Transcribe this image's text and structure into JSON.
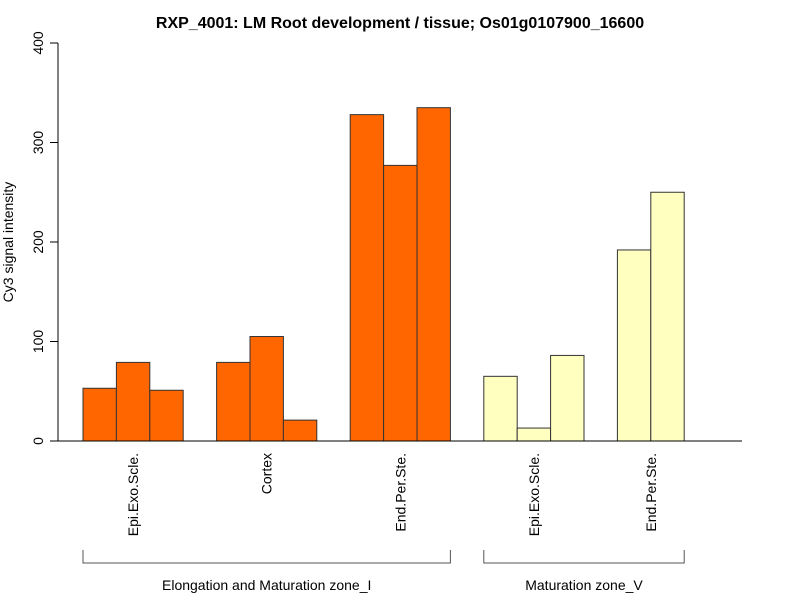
{
  "chart_data": {
    "type": "bar",
    "title": "RXP_4001: LM Root development / tissue; Os01g0107900_16600",
    "xlabel": "",
    "ylabel": "Cy3 signal intensity",
    "ylim": [
      0,
      400
    ],
    "yticks": [
      0,
      100,
      200,
      300,
      400
    ],
    "ytick_labels": [
      "0",
      "100",
      "200",
      "300",
      "400"
    ],
    "grid": false,
    "legend": "none",
    "groups": [
      {
        "name": "Elongation and Maturation zone_I",
        "color": "#FF6600",
        "categories": [
          {
            "label": "Epi.Exo.Scle.",
            "values": [
              53,
              79,
              51
            ]
          },
          {
            "label": "Cortex",
            "values": [
              79,
              105,
              21
            ]
          },
          {
            "label": "End.Per.Ste.",
            "values": [
              328,
              277,
              335
            ]
          }
        ]
      },
      {
        "name": "Maturation zone_V",
        "color": "#FFFFC0",
        "categories": [
          {
            "label": "Epi.Exo.Scle.",
            "values": [
              65,
              13,
              86
            ]
          },
          {
            "label": "End.Per.Ste.",
            "values": [
              192,
              250
            ]
          }
        ]
      }
    ]
  }
}
